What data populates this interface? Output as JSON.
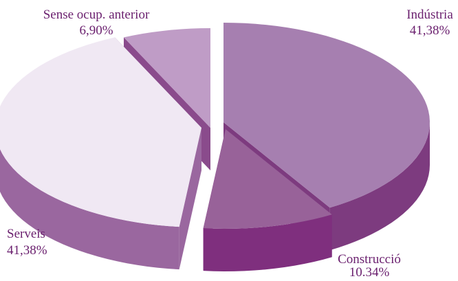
{
  "chart_data": {
    "type": "pie",
    "style": "3d-exploded",
    "categories": [
      "Indústria",
      "Construcció",
      "Serveis",
      "Sense ocup. anterior"
    ],
    "values": [
      41.38,
      10.34,
      41.38,
      6.9
    ],
    "value_labels": [
      "41,38%",
      "10.34%",
      "41,38%",
      "6,90%"
    ],
    "colors": {
      "top": [
        "#a67fb0",
        "#986299",
        "#f0e8f3",
        "#bf9cc6"
      ],
      "side": [
        "#7d3b7f",
        "#7f2f7e",
        "#9a679f",
        "#8a4b8c"
      ]
    },
    "label_color": "#6a1f6e",
    "legend": "none"
  }
}
